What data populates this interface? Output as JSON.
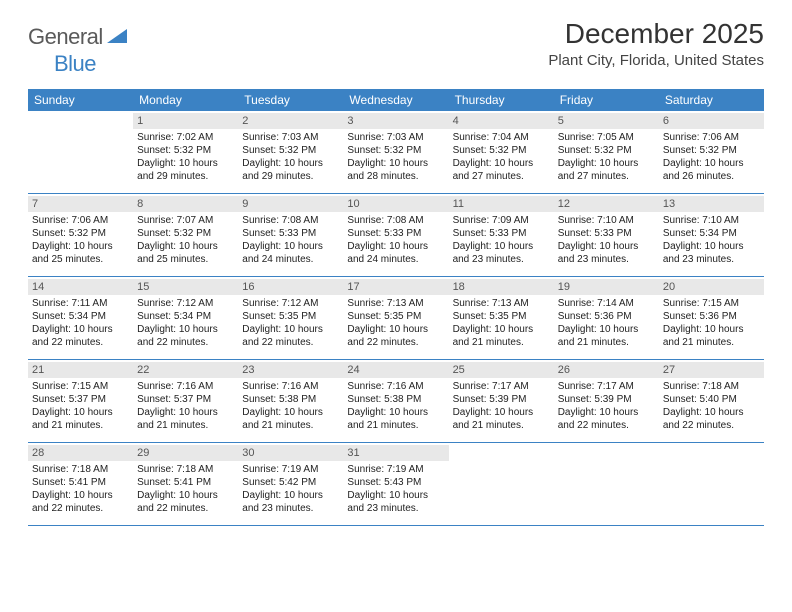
{
  "logo": {
    "text1": "General",
    "text2": "Blue"
  },
  "title": "December 2025",
  "location": "Plant City, Florida, United States",
  "colors": {
    "header_bg": "#3b82c4",
    "daynum_bg": "#e8e8e8",
    "text": "#222222",
    "title_text": "#333333",
    "logo_gray": "#5a5a5a",
    "logo_blue": "#3b82c4"
  },
  "weekdays": [
    "Sunday",
    "Monday",
    "Tuesday",
    "Wednesday",
    "Thursday",
    "Friday",
    "Saturday"
  ],
  "weeks": [
    [
      {
        "n": "",
        "sr": "",
        "ss": "",
        "dl": ""
      },
      {
        "n": "1",
        "sr": "Sunrise: 7:02 AM",
        "ss": "Sunset: 5:32 PM",
        "dl": "Daylight: 10 hours and 29 minutes."
      },
      {
        "n": "2",
        "sr": "Sunrise: 7:03 AM",
        "ss": "Sunset: 5:32 PM",
        "dl": "Daylight: 10 hours and 29 minutes."
      },
      {
        "n": "3",
        "sr": "Sunrise: 7:03 AM",
        "ss": "Sunset: 5:32 PM",
        "dl": "Daylight: 10 hours and 28 minutes."
      },
      {
        "n": "4",
        "sr": "Sunrise: 7:04 AM",
        "ss": "Sunset: 5:32 PM",
        "dl": "Daylight: 10 hours and 27 minutes."
      },
      {
        "n": "5",
        "sr": "Sunrise: 7:05 AM",
        "ss": "Sunset: 5:32 PM",
        "dl": "Daylight: 10 hours and 27 minutes."
      },
      {
        "n": "6",
        "sr": "Sunrise: 7:06 AM",
        "ss": "Sunset: 5:32 PM",
        "dl": "Daylight: 10 hours and 26 minutes."
      }
    ],
    [
      {
        "n": "7",
        "sr": "Sunrise: 7:06 AM",
        "ss": "Sunset: 5:32 PM",
        "dl": "Daylight: 10 hours and 25 minutes."
      },
      {
        "n": "8",
        "sr": "Sunrise: 7:07 AM",
        "ss": "Sunset: 5:32 PM",
        "dl": "Daylight: 10 hours and 25 minutes."
      },
      {
        "n": "9",
        "sr": "Sunrise: 7:08 AM",
        "ss": "Sunset: 5:33 PM",
        "dl": "Daylight: 10 hours and 24 minutes."
      },
      {
        "n": "10",
        "sr": "Sunrise: 7:08 AM",
        "ss": "Sunset: 5:33 PM",
        "dl": "Daylight: 10 hours and 24 minutes."
      },
      {
        "n": "11",
        "sr": "Sunrise: 7:09 AM",
        "ss": "Sunset: 5:33 PM",
        "dl": "Daylight: 10 hours and 23 minutes."
      },
      {
        "n": "12",
        "sr": "Sunrise: 7:10 AM",
        "ss": "Sunset: 5:33 PM",
        "dl": "Daylight: 10 hours and 23 minutes."
      },
      {
        "n": "13",
        "sr": "Sunrise: 7:10 AM",
        "ss": "Sunset: 5:34 PM",
        "dl": "Daylight: 10 hours and 23 minutes."
      }
    ],
    [
      {
        "n": "14",
        "sr": "Sunrise: 7:11 AM",
        "ss": "Sunset: 5:34 PM",
        "dl": "Daylight: 10 hours and 22 minutes."
      },
      {
        "n": "15",
        "sr": "Sunrise: 7:12 AM",
        "ss": "Sunset: 5:34 PM",
        "dl": "Daylight: 10 hours and 22 minutes."
      },
      {
        "n": "16",
        "sr": "Sunrise: 7:12 AM",
        "ss": "Sunset: 5:35 PM",
        "dl": "Daylight: 10 hours and 22 minutes."
      },
      {
        "n": "17",
        "sr": "Sunrise: 7:13 AM",
        "ss": "Sunset: 5:35 PM",
        "dl": "Daylight: 10 hours and 22 minutes."
      },
      {
        "n": "18",
        "sr": "Sunrise: 7:13 AM",
        "ss": "Sunset: 5:35 PM",
        "dl": "Daylight: 10 hours and 21 minutes."
      },
      {
        "n": "19",
        "sr": "Sunrise: 7:14 AM",
        "ss": "Sunset: 5:36 PM",
        "dl": "Daylight: 10 hours and 21 minutes."
      },
      {
        "n": "20",
        "sr": "Sunrise: 7:15 AM",
        "ss": "Sunset: 5:36 PM",
        "dl": "Daylight: 10 hours and 21 minutes."
      }
    ],
    [
      {
        "n": "21",
        "sr": "Sunrise: 7:15 AM",
        "ss": "Sunset: 5:37 PM",
        "dl": "Daylight: 10 hours and 21 minutes."
      },
      {
        "n": "22",
        "sr": "Sunrise: 7:16 AM",
        "ss": "Sunset: 5:37 PM",
        "dl": "Daylight: 10 hours and 21 minutes."
      },
      {
        "n": "23",
        "sr": "Sunrise: 7:16 AM",
        "ss": "Sunset: 5:38 PM",
        "dl": "Daylight: 10 hours and 21 minutes."
      },
      {
        "n": "24",
        "sr": "Sunrise: 7:16 AM",
        "ss": "Sunset: 5:38 PM",
        "dl": "Daylight: 10 hours and 21 minutes."
      },
      {
        "n": "25",
        "sr": "Sunrise: 7:17 AM",
        "ss": "Sunset: 5:39 PM",
        "dl": "Daylight: 10 hours and 21 minutes."
      },
      {
        "n": "26",
        "sr": "Sunrise: 7:17 AM",
        "ss": "Sunset: 5:39 PM",
        "dl": "Daylight: 10 hours and 22 minutes."
      },
      {
        "n": "27",
        "sr": "Sunrise: 7:18 AM",
        "ss": "Sunset: 5:40 PM",
        "dl": "Daylight: 10 hours and 22 minutes."
      }
    ],
    [
      {
        "n": "28",
        "sr": "Sunrise: 7:18 AM",
        "ss": "Sunset: 5:41 PM",
        "dl": "Daylight: 10 hours and 22 minutes."
      },
      {
        "n": "29",
        "sr": "Sunrise: 7:18 AM",
        "ss": "Sunset: 5:41 PM",
        "dl": "Daylight: 10 hours and 22 minutes."
      },
      {
        "n": "30",
        "sr": "Sunrise: 7:19 AM",
        "ss": "Sunset: 5:42 PM",
        "dl": "Daylight: 10 hours and 23 minutes."
      },
      {
        "n": "31",
        "sr": "Sunrise: 7:19 AM",
        "ss": "Sunset: 5:43 PM",
        "dl": "Daylight: 10 hours and 23 minutes."
      },
      {
        "n": "",
        "sr": "",
        "ss": "",
        "dl": ""
      },
      {
        "n": "",
        "sr": "",
        "ss": "",
        "dl": ""
      },
      {
        "n": "",
        "sr": "",
        "ss": "",
        "dl": ""
      }
    ]
  ]
}
